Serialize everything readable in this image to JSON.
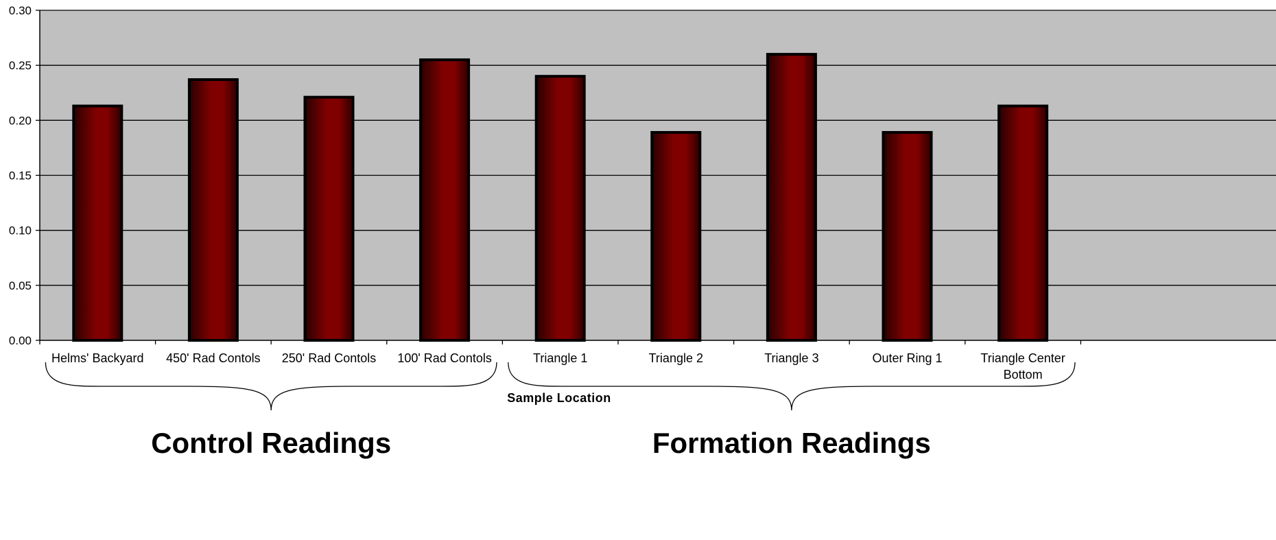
{
  "chart_data": {
    "type": "bar",
    "title": "",
    "xlabel": "Sample Location",
    "ylabel": "",
    "ylim": [
      0,
      0.3
    ],
    "yticks": [
      "0.00",
      "0.05",
      "0.10",
      "0.15",
      "0.20",
      "0.25",
      "0.30"
    ],
    "grid": true,
    "categories": [
      "Helms' Backyard",
      "450' Rad Contols",
      "250' Rad Contols",
      "100' Rad Contols",
      "Triangle 1",
      "Triangle 2",
      "Triangle 3",
      "Outer Ring 1",
      "Triangle Center Bottom"
    ],
    "values": [
      0.213,
      0.237,
      0.221,
      0.255,
      0.24,
      0.189,
      0.26,
      0.189,
      0.213
    ],
    "groups": [
      {
        "label": "Control Readings",
        "from": 0,
        "to": 3
      },
      {
        "label": "Formation Readings",
        "from": 4,
        "to": 8
      }
    ],
    "colors": {
      "plot_background": "#c0c0c0",
      "bar": "#800000",
      "bar_dark": "#2a0000",
      "bar_outline": "#000000",
      "gridline": "#000000"
    }
  }
}
